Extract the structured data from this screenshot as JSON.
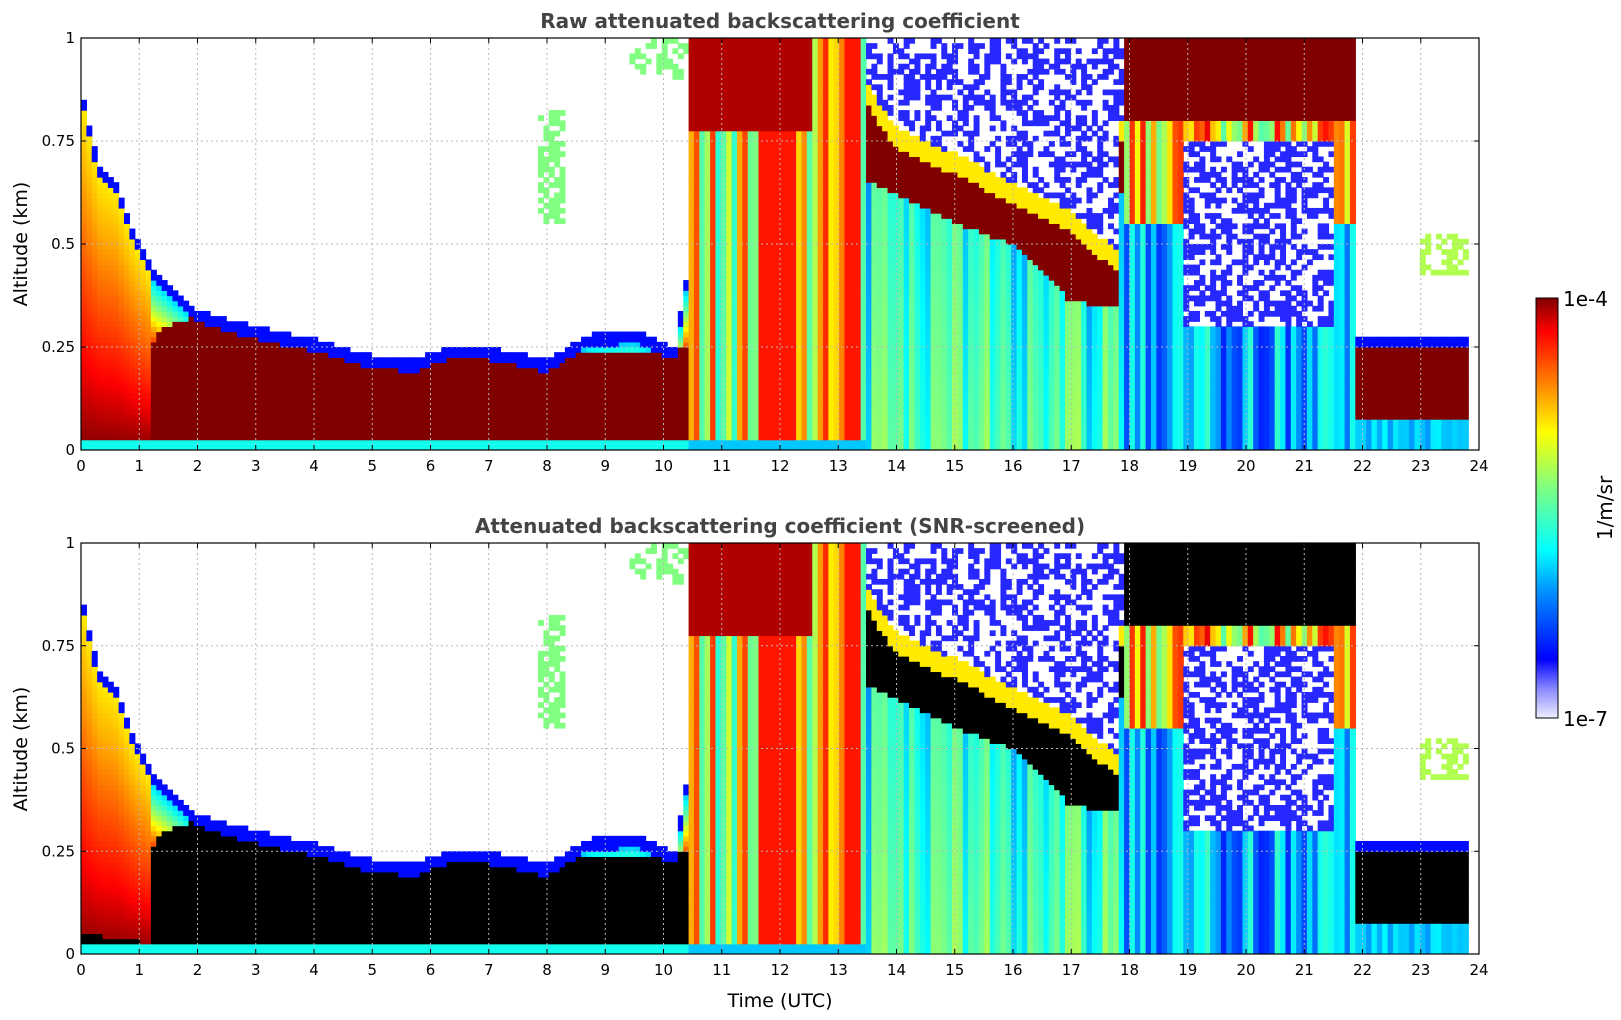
{
  "chart_data": [
    {
      "type": "heatmap",
      "title": "Raw attenuated backscattering coefficient",
      "xlabel": "",
      "ylabel": "Altitude (km)",
      "xlim": [
        0,
        24
      ],
      "ylim": [
        0,
        1
      ],
      "x_ticks": [
        "0",
        "1",
        "2",
        "3",
        "4",
        "5",
        "6",
        "7",
        "8",
        "9",
        "10",
        "11",
        "12",
        "13",
        "14",
        "15",
        "16",
        "17",
        "18",
        "19",
        "20",
        "21",
        "22",
        "23",
        "24"
      ],
      "y_ticks": [
        "0",
        "0.25",
        "0.5",
        "0.75",
        "1"
      ],
      "grid": true,
      "colorscale": "jet",
      "clim": [
        "1e-7",
        "1e-4"
      ],
      "colorbar_label": "1/m/sr",
      "features": {
        "boundary_layer_top_km": [
          [
            0,
            0.85
          ],
          [
            0.5,
            0.62
          ],
          [
            1,
            0.42
          ],
          [
            2,
            0.3
          ],
          [
            3,
            0.26
          ],
          [
            4,
            0.23
          ],
          [
            5,
            0.2
          ],
          [
            6,
            0.21
          ],
          [
            7,
            0.22
          ],
          [
            8,
            0.2
          ],
          [
            9,
            0.26
          ],
          [
            10,
            0.25
          ],
          [
            10.4,
            0.3
          ]
        ],
        "cloud_layer_km": [
          [
            9.5,
            0.85
          ],
          [
            11,
            0.8
          ],
          [
            12.5,
            1.0
          ],
          [
            14,
            0.65
          ],
          [
            15,
            0.62
          ],
          [
            16,
            0.55
          ],
          [
            17,
            0.48
          ],
          [
            17.8,
            0.38
          ],
          [
            18,
            0.9
          ],
          [
            21.8,
            0.9
          ],
          [
            22,
            0.17
          ],
          [
            23.8,
            0.14
          ]
        ]
      }
    },
    {
      "type": "heatmap",
      "title": "Attenuated backscattering coefficient (SNR-screened)",
      "xlabel": "Time (UTC)",
      "ylabel": "Altitude (km)",
      "xlim": [
        0,
        24
      ],
      "ylim": [
        0,
        1
      ],
      "x_ticks": [
        "0",
        "1",
        "2",
        "3",
        "4",
        "5",
        "6",
        "7",
        "8",
        "9",
        "10",
        "11",
        "12",
        "13",
        "14",
        "15",
        "16",
        "17",
        "18",
        "19",
        "20",
        "21",
        "22",
        "23",
        "24"
      ],
      "y_ticks": [
        "0",
        "0.25",
        "0.5",
        "0.75",
        "1"
      ],
      "grid": true,
      "colorscale": "jet",
      "clim": [
        "1e-7",
        "1e-4"
      ],
      "colorbar_label": "1/m/sr",
      "saturated_color": "#000000"
    }
  ],
  "colorbar": {
    "max_label": "1e-4",
    "min_label": "1e-7",
    "unit_label": "1/m/sr"
  }
}
